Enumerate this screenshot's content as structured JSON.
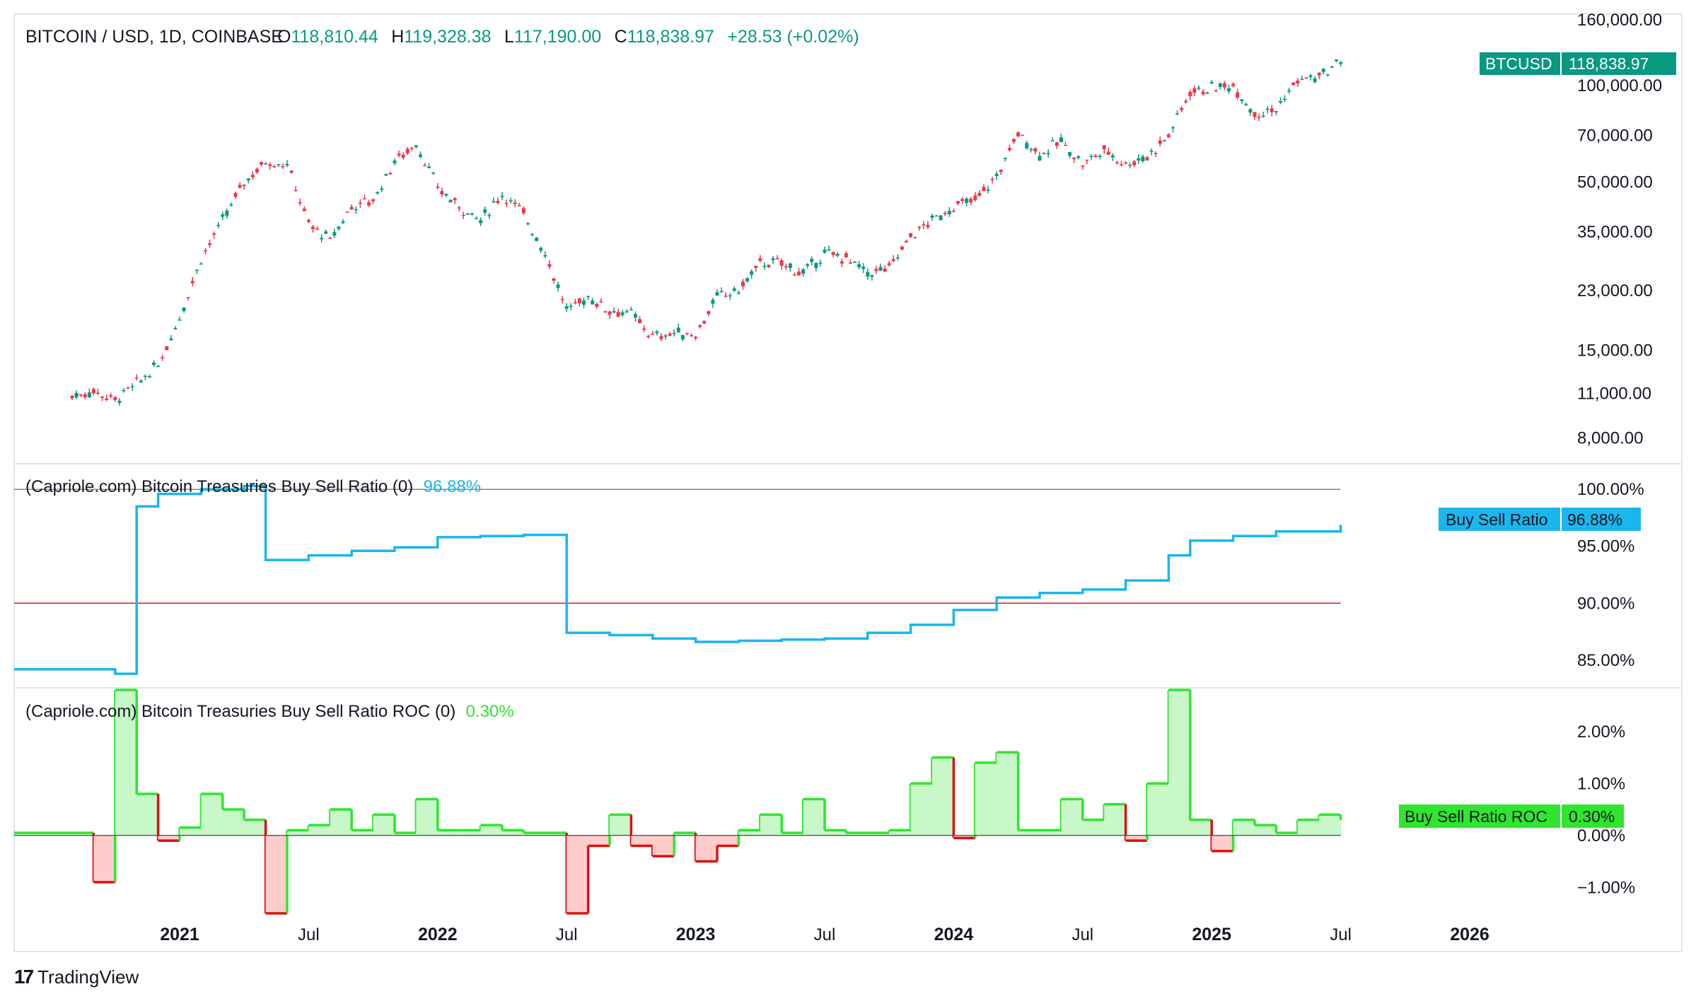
{
  "header": {
    "symbol_line": "BITCOIN / USD, 1D, COINBASE",
    "open_label": "O",
    "open": "118,810.44",
    "high_label": "H",
    "high": "119,328.38",
    "low_label": "L",
    "low": "117,190.00",
    "close_label": "C",
    "close": "118,838.97",
    "change": "+28.53 (+0.02%)"
  },
  "price_tag": {
    "name": "BTCUSD",
    "value": "118,838.97"
  },
  "indicator1": {
    "title": "(Capriole.com) Bitcoin Treasuries Buy Sell Ratio (0)",
    "value": "96.88%",
    "tag_name": "Buy Sell Ratio",
    "tag_value": "96.88%"
  },
  "indicator2": {
    "title": "(Capriole.com) Bitcoin Treasuries Buy Sell Ratio ROC (0)",
    "value": "0.30%",
    "tag_name": "Buy Sell Ratio ROC",
    "tag_value": "0.30%"
  },
  "brand": {
    "name": "TradingView"
  },
  "colors": {
    "up": "#089981",
    "down": "#f23645",
    "ratio_line": "#1ab6ee",
    "roc_up": "#2ee62e",
    "roc_down": "#e01010",
    "threshold": "#cc2222",
    "grid": "#e0e3eb",
    "text": "#131722"
  },
  "chart_data": [
    {
      "type": "line",
      "title": "BITCOIN / USD, 1D, COINBASE",
      "scale": "log",
      "x_ticks": [
        "2021",
        "Jul",
        "2022",
        "Jul",
        "2023",
        "Jul",
        "2024",
        "Jul",
        "2025",
        "Jul",
        "2026"
      ],
      "y_ticks": [
        "160,000.00",
        "100,000.00",
        "70,000.00",
        "50,000.00",
        "35,000.00",
        "23,000.00",
        "15,000.00",
        "11,000.00",
        "8,000.00"
      ],
      "ylim": [
        7000,
        160000
      ],
      "x": [
        "2020-08",
        "2020-09",
        "2020-10",
        "2020-11",
        "2020-12",
        "2021-01",
        "2021-02",
        "2021-03",
        "2021-04",
        "2021-05",
        "2021-06",
        "2021-07",
        "2021-08",
        "2021-09",
        "2021-10",
        "2021-11",
        "2021-12",
        "2022-01",
        "2022-02",
        "2022-03",
        "2022-04",
        "2022-05",
        "2022-06",
        "2022-07",
        "2022-08",
        "2022-09",
        "2022-10",
        "2022-11",
        "2022-12",
        "2023-01",
        "2023-02",
        "2023-03",
        "2023-04",
        "2023-05",
        "2023-06",
        "2023-07",
        "2023-08",
        "2023-09",
        "2023-10",
        "2023-11",
        "2023-12",
        "2024-01",
        "2024-02",
        "2024-03",
        "2024-04",
        "2024-05",
        "2024-06",
        "2024-07",
        "2024-08",
        "2024-09",
        "2024-10",
        "2024-11",
        "2024-12",
        "2025-01",
        "2025-02",
        "2025-03",
        "2025-04",
        "2025-05",
        "2025-06",
        "2025-07"
      ],
      "values": [
        10800,
        11200,
        10500,
        11800,
        13500,
        19000,
        29000,
        38000,
        50000,
        58000,
        57000,
        37000,
        33000,
        42000,
        44000,
        58000,
        66000,
        48000,
        42000,
        38000,
        46000,
        40000,
        30000,
        20000,
        22000,
        20000,
        19500,
        16500,
        17000,
        16800,
        22000,
        23000,
        28000,
        28000,
        26000,
        30000,
        29000,
        26000,
        27000,
        34000,
        38000,
        42000,
        44000,
        52000,
        71000,
        61000,
        67000,
        57000,
        63000,
        57000,
        60000,
        70000,
        96000,
        98000,
        100000,
        82000,
        84000,
        104000,
        106000,
        118838.97
      ],
      "series": [
        {
          "name": "BTCUSD"
        }
      ]
    },
    {
      "type": "line",
      "title": "(Capriole.com) Bitcoin Treasuries Buy Sell Ratio (0)",
      "y_ticks": [
        "100.00%",
        "95.00%",
        "90.00%",
        "85.00%"
      ],
      "ylim": [
        83,
        102
      ],
      "reference_lines": [
        100,
        90
      ],
      "x": [
        "2020-08",
        "2020-10",
        "2020-11",
        "2020-12",
        "2021-02",
        "2021-04",
        "2021-05",
        "2021-07",
        "2021-09",
        "2021-11",
        "2022-01",
        "2022-03",
        "2022-05",
        "2022-07",
        "2022-09",
        "2022-11",
        "2023-01",
        "2023-03",
        "2023-05",
        "2023-07",
        "2023-09",
        "2023-11",
        "2024-01",
        "2024-03",
        "2024-05",
        "2024-07",
        "2024-09",
        "2024-11",
        "2024-12",
        "2025-02",
        "2025-04",
        "2025-07"
      ],
      "values": [
        84.2,
        83.8,
        98.5,
        99.6,
        100.0,
        100.3,
        93.8,
        94.2,
        94.6,
        94.9,
        95.8,
        95.9,
        96.0,
        87.4,
        87.2,
        86.9,
        86.6,
        86.7,
        86.8,
        86.9,
        87.4,
        88.1,
        89.4,
        90.5,
        90.9,
        91.2,
        92.0,
        94.2,
        95.5,
        95.9,
        96.3,
        96.88
      ],
      "series": [
        {
          "name": "Buy Sell Ratio"
        }
      ]
    },
    {
      "type": "area",
      "title": "(Capriole.com) Bitcoin Treasuries Buy Sell Ratio ROC (0)",
      "y_ticks": [
        "2.00%",
        "1.00%",
        "0.00%",
        "−1.00%"
      ],
      "ylim": [
        -1.5,
        2.8
      ],
      "x": [
        "2020-08",
        "2020-09",
        "2020-10",
        "2020-11",
        "2020-12",
        "2021-01",
        "2021-02",
        "2021-03",
        "2021-04",
        "2021-05",
        "2021-06",
        "2021-07",
        "2021-08",
        "2021-09",
        "2021-10",
        "2021-11",
        "2021-12",
        "2022-01",
        "2022-02",
        "2022-03",
        "2022-04",
        "2022-05",
        "2022-06",
        "2022-07",
        "2022-08",
        "2022-09",
        "2022-10",
        "2022-11",
        "2022-12",
        "2023-01",
        "2023-02",
        "2023-03",
        "2023-04",
        "2023-05",
        "2023-06",
        "2023-07",
        "2023-08",
        "2023-09",
        "2023-10",
        "2023-11",
        "2023-12",
        "2024-01",
        "2024-02",
        "2024-03",
        "2024-04",
        "2024-05",
        "2024-06",
        "2024-07",
        "2024-08",
        "2024-09",
        "2024-10",
        "2024-11",
        "2024-12",
        "2025-01",
        "2025-02",
        "2025-03",
        "2025-04",
        "2025-05",
        "2025-06",
        "2025-07"
      ],
      "values": [
        0.05,
        -0.9,
        2.8,
        0.8,
        -0.1,
        0.15,
        0.8,
        0.5,
        0.3,
        -1.6,
        0.1,
        0.2,
        0.5,
        0.1,
        0.4,
        0.05,
        0.7,
        0.1,
        0.1,
        0.2,
        0.1,
        0.05,
        0.05,
        -1.6,
        -0.2,
        0.4,
        -0.2,
        -0.4,
        0.05,
        -0.5,
        -0.2,
        0.1,
        0.4,
        0.05,
        0.7,
        0.1,
        0.05,
        0.05,
        0.1,
        1.0,
        1.5,
        -0.05,
        1.4,
        1.6,
        0.1,
        0.1,
        0.7,
        0.3,
        0.6,
        -0.1,
        1.0,
        2.8,
        0.3,
        -0.3,
        0.3,
        0.2,
        0.05,
        0.3,
        0.4,
        0.3
      ],
      "series": [
        {
          "name": "Buy Sell Ratio ROC"
        }
      ]
    }
  ]
}
